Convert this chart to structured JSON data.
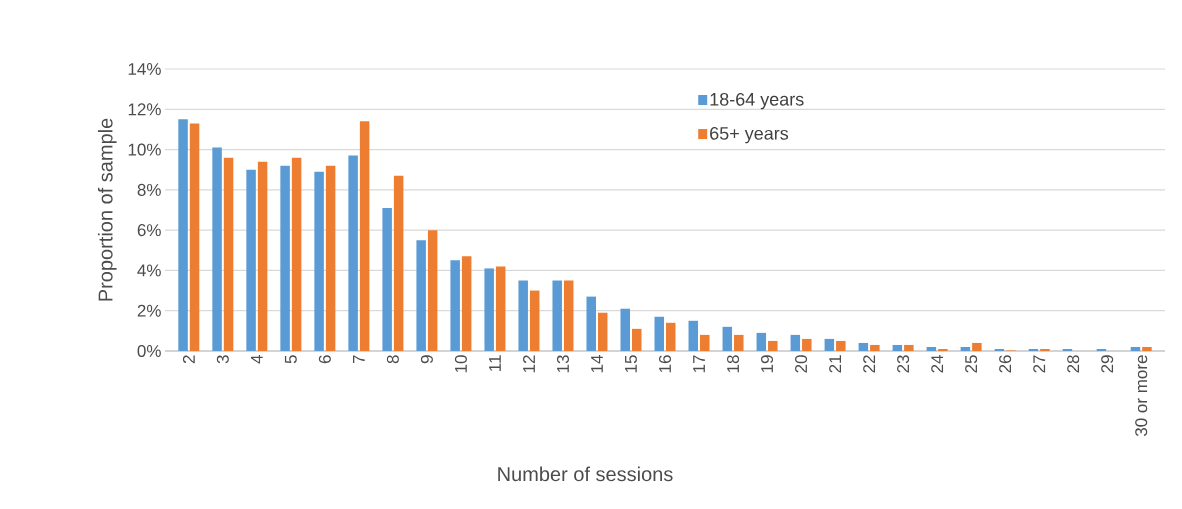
{
  "chart_data": {
    "type": "bar",
    "xlabel": "Number of sessions",
    "ylabel": "Proportion of sample",
    "categories": [
      "2",
      "3",
      "4",
      "5",
      "6",
      "7",
      "8",
      "9",
      "10",
      "11",
      "12",
      "13",
      "14",
      "15",
      "16",
      "17",
      "18",
      "19",
      "20",
      "21",
      "22",
      "23",
      "24",
      "25",
      "26",
      "27",
      "28",
      "29",
      "30 or more"
    ],
    "series": [
      {
        "name": "18-64 years",
        "color": "#5b9bd5",
        "values": [
          11.5,
          10.1,
          9.0,
          9.2,
          8.9,
          9.7,
          7.1,
          5.5,
          4.5,
          4.1,
          3.5,
          3.5,
          2.7,
          2.1,
          1.7,
          1.5,
          1.2,
          0.9,
          0.8,
          0.6,
          0.4,
          0.3,
          0.2,
          0.2,
          0.1,
          0.1,
          0.1,
          0.1,
          0.2
        ]
      },
      {
        "name": "65+ years",
        "color": "#ed7d31",
        "values": [
          11.3,
          9.6,
          9.4,
          9.6,
          9.2,
          11.4,
          8.7,
          6.0,
          4.7,
          4.2,
          3.0,
          3.5,
          1.9,
          1.1,
          1.4,
          0.8,
          0.8,
          0.5,
          0.6,
          0.5,
          0.3,
          0.3,
          0.1,
          0.4,
          0.03,
          0.1,
          null,
          null,
          0.2
        ]
      }
    ],
    "ylim": [
      0,
      14
    ],
    "yticks": [
      {
        "value": 0,
        "label": "0%"
      },
      {
        "value": 2,
        "label": "2%"
      },
      {
        "value": 4,
        "label": "4%"
      },
      {
        "value": 6,
        "label": "6%"
      },
      {
        "value": 8,
        "label": "8%"
      },
      {
        "value": 10,
        "label": "10%"
      },
      {
        "value": 12,
        "label": "12%"
      },
      {
        "value": 14,
        "label": "14%"
      }
    ],
    "grid": "y",
    "legend": "top"
  }
}
